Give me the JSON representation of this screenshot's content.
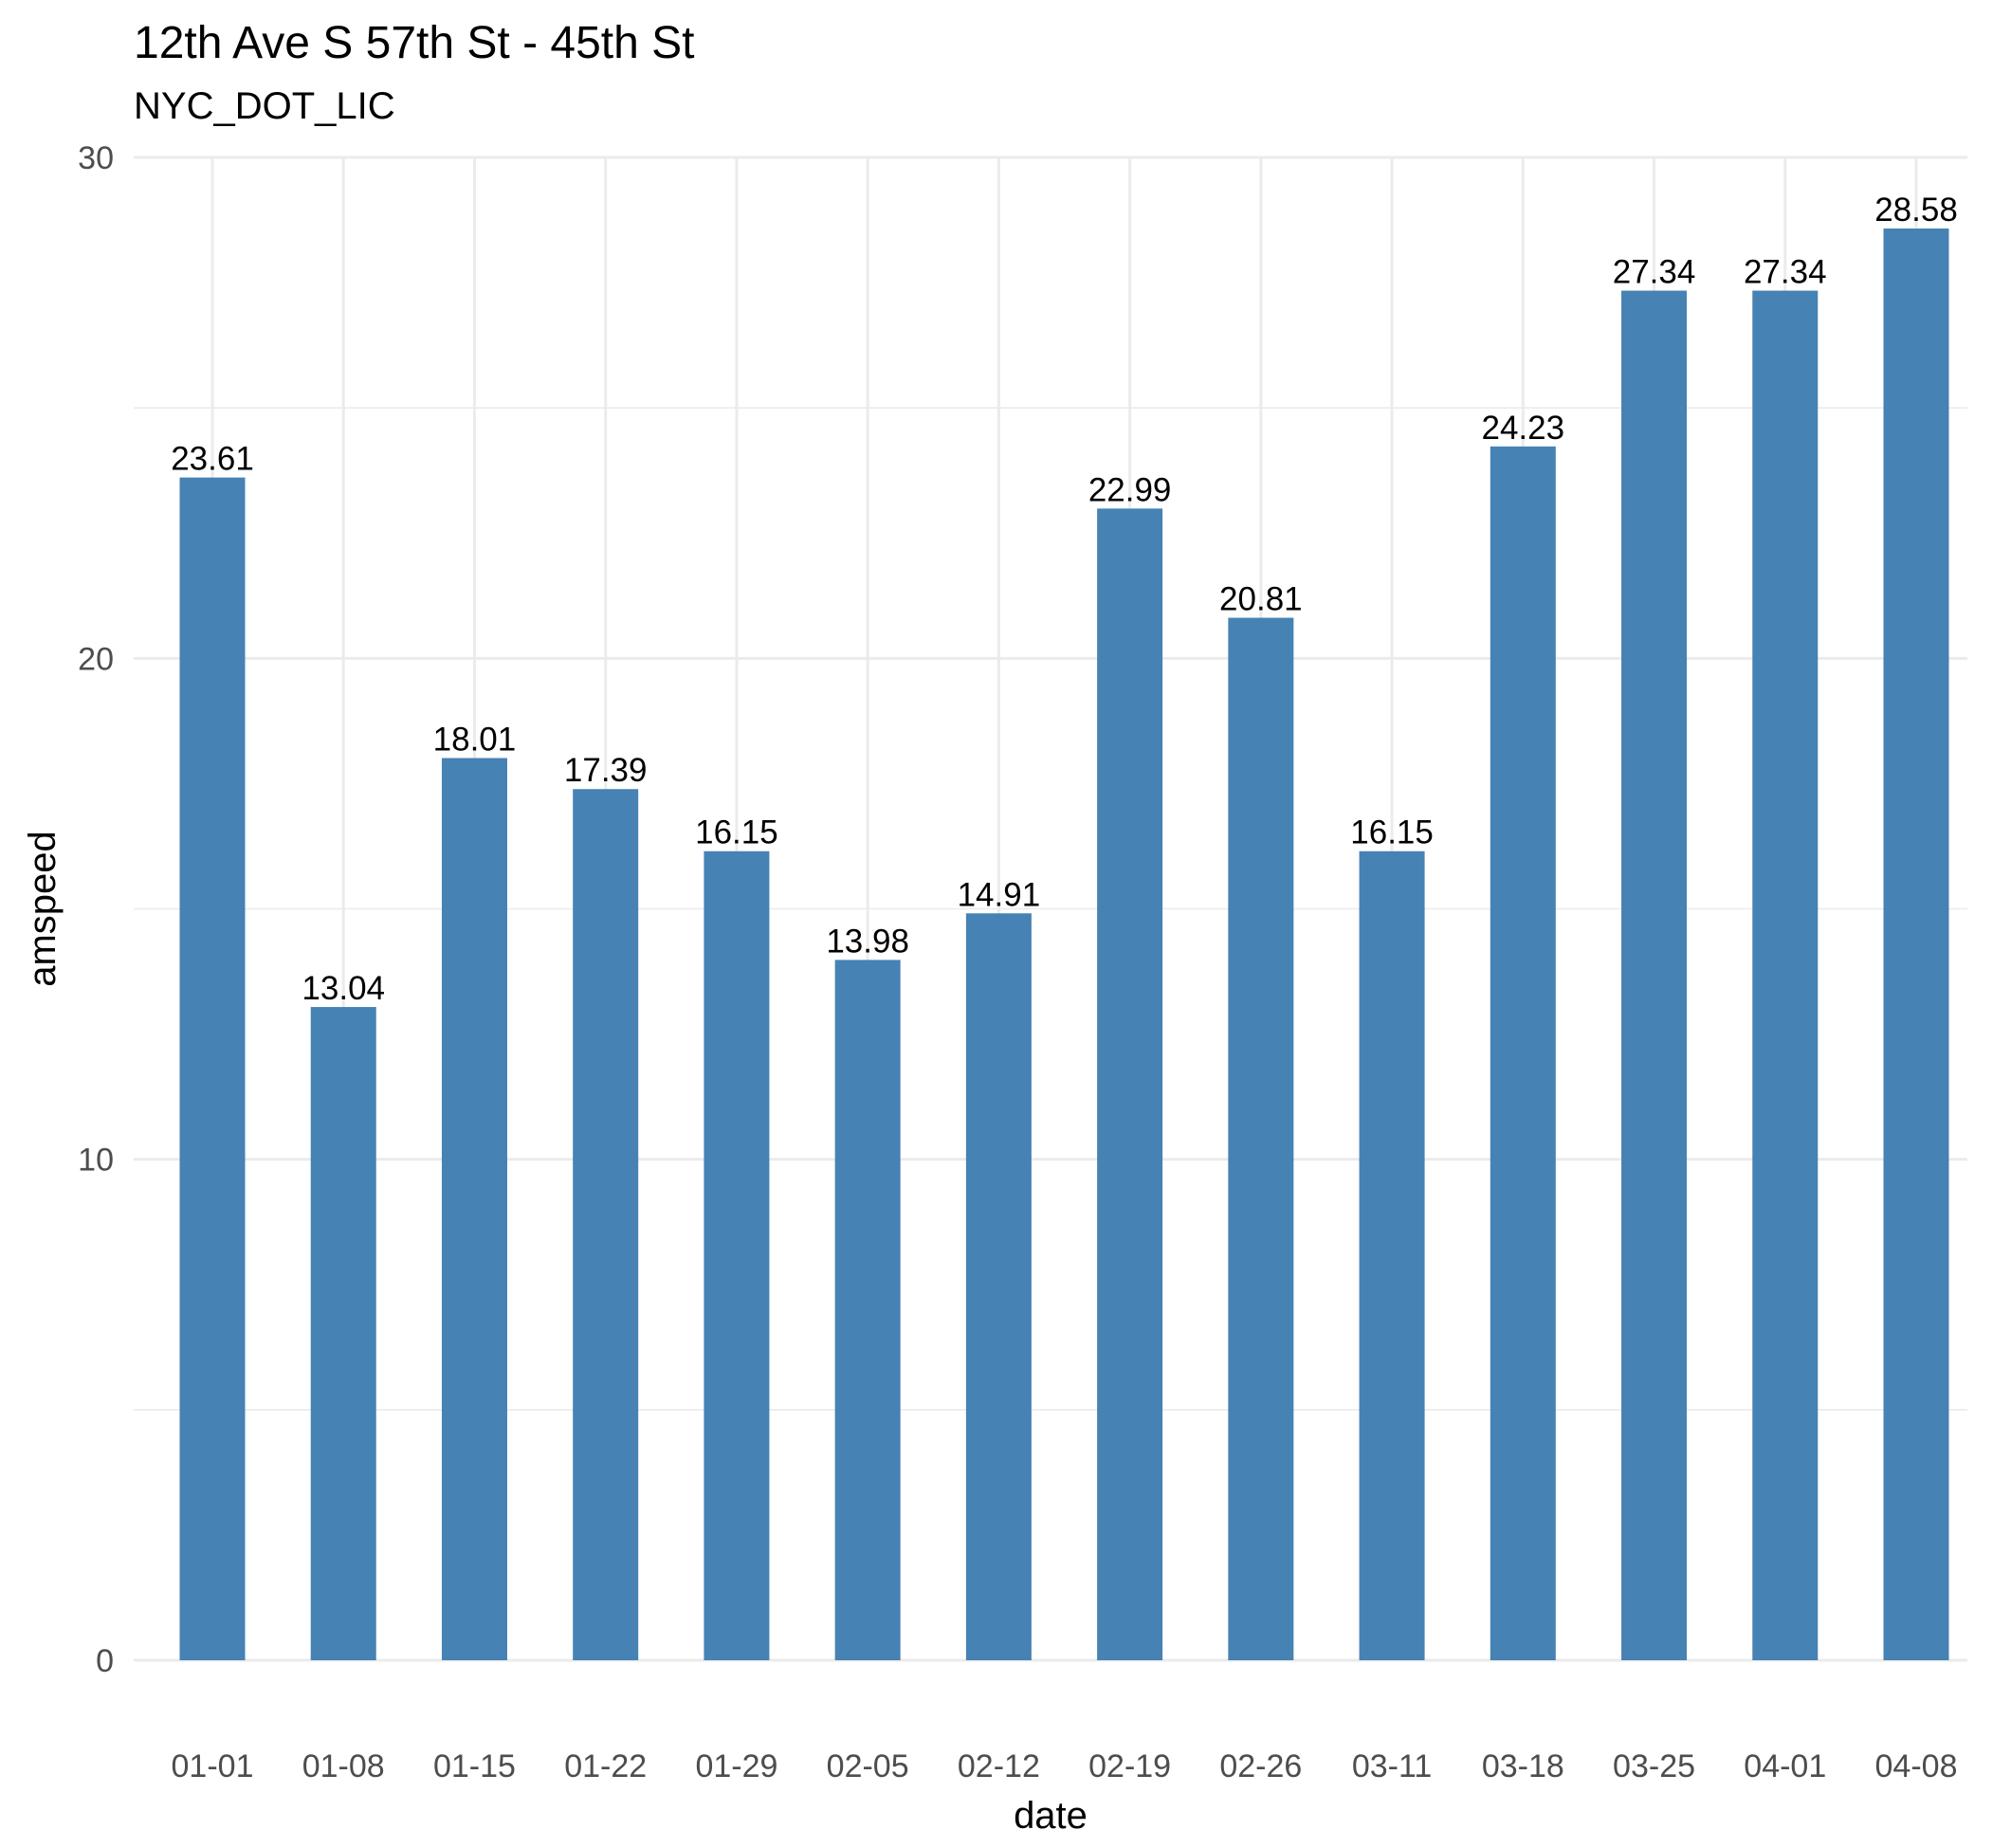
{
  "chart_data": {
    "type": "bar",
    "title": "12th Ave S 57th St - 45th St",
    "subtitle": "NYC_DOT_LIC",
    "xlabel": "date",
    "ylabel": "amspeed",
    "categories": [
      "01-01",
      "01-08",
      "01-15",
      "01-22",
      "01-29",
      "02-05",
      "02-12",
      "02-19",
      "02-26",
      "03-11",
      "03-18",
      "03-25",
      "04-01",
      "04-08"
    ],
    "values": [
      23.61,
      13.04,
      18.01,
      17.39,
      16.15,
      13.98,
      14.91,
      22.99,
      20.81,
      16.15,
      24.23,
      27.34,
      27.34,
      28.58
    ],
    "data_labels": [
      "23.61",
      "13.04",
      "18.01",
      "17.39",
      "16.15",
      "13.98",
      "14.91",
      "22.99",
      "20.81",
      "16.15",
      "24.23",
      "27.34",
      "27.34",
      "28.58"
    ],
    "ylim": [
      0,
      30
    ],
    "yticks": [
      "0",
      "10",
      "20",
      "30"
    ],
    "grid": true,
    "bar_color": "#4682B4",
    "grid_color": "#EBEBEB"
  }
}
